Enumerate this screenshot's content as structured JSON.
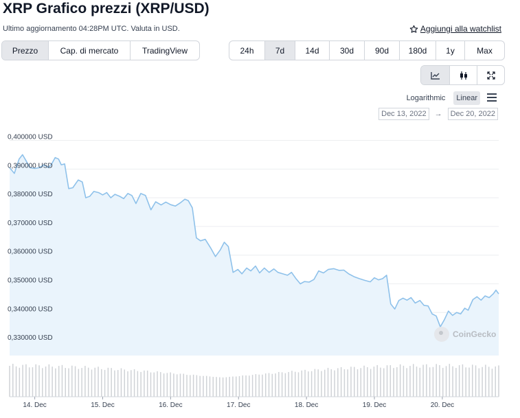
{
  "header": {
    "title": "XRP Grafico prezzi (XRP/USD)",
    "subtitle": "Ultimo aggiornamento 04:28PM UTC. Valuta in USD.",
    "watchlist_label": "Aggiungi alla watchlist"
  },
  "view_tabs": [
    {
      "label": "Prezzo",
      "active": true
    },
    {
      "label": "Cap. di mercato",
      "active": false
    },
    {
      "label": "TradingView",
      "active": false
    }
  ],
  "range_tabs": [
    {
      "label": "24h",
      "active": false
    },
    {
      "label": "7d",
      "active": true
    },
    {
      "label": "14d",
      "active": false
    },
    {
      "label": "30d",
      "active": false
    },
    {
      "label": "90d",
      "active": false
    },
    {
      "label": "180d",
      "active": false
    },
    {
      "label": "1y",
      "active": false
    },
    {
      "label": "Max",
      "active": false
    }
  ],
  "chart_types": [
    {
      "icon": "line-chart-icon",
      "active": true
    },
    {
      "icon": "candlestick-icon",
      "active": false
    },
    {
      "icon": "expand-icon",
      "active": false
    }
  ],
  "scale": {
    "log_label": "Logarithmic",
    "linear_label": "Linear",
    "active": "linear"
  },
  "dates": {
    "from": "Dec 13, 2022",
    "arrow": "→",
    "to": "Dec 20, 2022"
  },
  "watermark": "CoinGecko",
  "colors": {
    "line": "#8ec1ea",
    "fill": "#eaf4fc",
    "volume": "#cfd2d6",
    "grid": "#eceef0"
  },
  "chart_data": {
    "type": "area",
    "title": "",
    "xlabel": "",
    "ylabel": "",
    "ylim": [
      0.325,
      0.403
    ],
    "y_ticks": [
      0.33,
      0.34,
      0.35,
      0.36,
      0.37,
      0.38,
      0.39,
      0.4
    ],
    "y_tick_labels": [
      "0,330000 USD",
      "0,340000 USD",
      "0,350000 USD",
      "0,360000 USD",
      "0,370000 USD",
      "0,380000 USD",
      "0,390000 USD",
      "0,400000 USD"
    ],
    "x_range": [
      13.63,
      20.83
    ],
    "x_ticks": [
      14,
      15,
      16,
      17,
      18,
      19,
      20
    ],
    "x_tick_labels": [
      "14. Dec",
      "15. Dec",
      "16. Dec",
      "17. Dec",
      "18. Dec",
      "19. Dec",
      "20. Dec"
    ],
    "series": [
      {
        "name": "XRP/USD",
        "points": [
          [
            13.63,
            0.3905
          ],
          [
            13.7,
            0.3885
          ],
          [
            13.77,
            0.3935
          ],
          [
            13.82,
            0.395
          ],
          [
            13.87,
            0.393
          ],
          [
            13.93,
            0.3905
          ],
          [
            14.0,
            0.3902
          ],
          [
            14.07,
            0.3905
          ],
          [
            14.14,
            0.3915
          ],
          [
            14.2,
            0.3905
          ],
          [
            14.25,
            0.3918
          ],
          [
            14.3,
            0.394
          ],
          [
            14.35,
            0.3935
          ],
          [
            14.39,
            0.3915
          ],
          [
            14.44,
            0.3918
          ],
          [
            14.5,
            0.3832
          ],
          [
            14.56,
            0.3835
          ],
          [
            14.64,
            0.3862
          ],
          [
            14.7,
            0.3855
          ],
          [
            14.75,
            0.38
          ],
          [
            14.81,
            0.3805
          ],
          [
            14.87,
            0.3822
          ],
          [
            14.94,
            0.3818
          ],
          [
            15.0,
            0.381
          ],
          [
            15.06,
            0.3818
          ],
          [
            15.12,
            0.38
          ],
          [
            15.18,
            0.3812
          ],
          [
            15.25,
            0.3805
          ],
          [
            15.31,
            0.3797
          ],
          [
            15.37,
            0.3815
          ],
          [
            15.43,
            0.3808
          ],
          [
            15.49,
            0.378
          ],
          [
            15.56,
            0.3815
          ],
          [
            15.63,
            0.3808
          ],
          [
            15.71,
            0.3758
          ],
          [
            15.78,
            0.3786
          ],
          [
            15.86,
            0.3775
          ],
          [
            15.93,
            0.3785
          ],
          [
            16.0,
            0.3776
          ],
          [
            16.07,
            0.3771
          ],
          [
            16.14,
            0.3782
          ],
          [
            16.21,
            0.3795
          ],
          [
            16.26,
            0.379
          ],
          [
            16.32,
            0.3765
          ],
          [
            16.38,
            0.366
          ],
          [
            16.44,
            0.365
          ],
          [
            16.51,
            0.3655
          ],
          [
            16.59,
            0.3625
          ],
          [
            16.66,
            0.3595
          ],
          [
            16.73,
            0.3618
          ],
          [
            16.79,
            0.3645
          ],
          [
            16.85,
            0.363
          ],
          [
            16.92,
            0.354
          ],
          [
            16.99,
            0.355
          ],
          [
            17.05,
            0.3535
          ],
          [
            17.12,
            0.3555
          ],
          [
            17.18,
            0.3545
          ],
          [
            17.25,
            0.3562
          ],
          [
            17.31,
            0.3538
          ],
          [
            17.38,
            0.3555
          ],
          [
            17.45,
            0.354
          ],
          [
            17.52,
            0.3552
          ],
          [
            17.58,
            0.354
          ],
          [
            17.65,
            0.3535
          ],
          [
            17.72,
            0.353
          ],
          [
            17.78,
            0.354
          ],
          [
            17.84,
            0.352
          ],
          [
            17.91,
            0.35
          ],
          [
            17.97,
            0.3508
          ],
          [
            18.04,
            0.3506
          ],
          [
            18.11,
            0.3515
          ],
          [
            18.18,
            0.3545
          ],
          [
            18.25,
            0.3538
          ],
          [
            18.32,
            0.355
          ],
          [
            18.4,
            0.3553
          ],
          [
            18.48,
            0.3547
          ],
          [
            18.55,
            0.3548
          ],
          [
            18.62,
            0.3535
          ],
          [
            18.7,
            0.3525
          ],
          [
            18.78,
            0.3518
          ],
          [
            18.86,
            0.3512
          ],
          [
            18.94,
            0.3507
          ],
          [
            19.0,
            0.3521
          ],
          [
            19.06,
            0.3514
          ],
          [
            19.12,
            0.3518
          ],
          [
            19.18,
            0.353
          ],
          [
            19.24,
            0.343
          ],
          [
            19.3,
            0.3412
          ],
          [
            19.36,
            0.3442
          ],
          [
            19.42,
            0.345
          ],
          [
            19.48,
            0.3443
          ],
          [
            19.54,
            0.3452
          ],
          [
            19.6,
            0.3433
          ],
          [
            19.67,
            0.3442
          ],
          [
            19.73,
            0.3425
          ],
          [
            19.79,
            0.3423
          ],
          [
            19.85,
            0.3395
          ],
          [
            19.91,
            0.3388
          ],
          [
            19.97,
            0.335
          ],
          [
            20.03,
            0.3375
          ],
          [
            20.09,
            0.3405
          ],
          [
            20.15,
            0.339
          ],
          [
            20.21,
            0.34
          ],
          [
            20.27,
            0.3395
          ],
          [
            20.33,
            0.3415
          ],
          [
            20.38,
            0.3408
          ],
          [
            20.45,
            0.3445
          ],
          [
            20.51,
            0.3455
          ],
          [
            20.57,
            0.3443
          ],
          [
            20.63,
            0.3458
          ],
          [
            20.69,
            0.3452
          ],
          [
            20.75,
            0.3465
          ],
          [
            20.79,
            0.3478
          ],
          [
            20.83,
            0.3465
          ]
        ]
      }
    ]
  }
}
